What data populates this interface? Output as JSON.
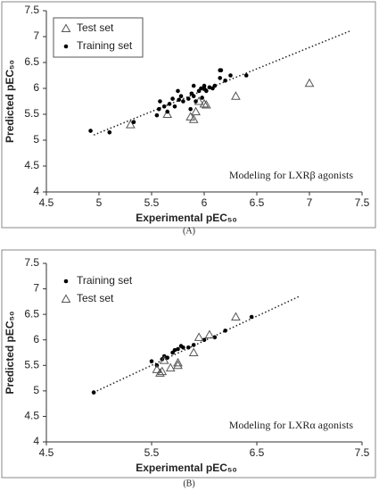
{
  "chart_data": [
    {
      "type": "scatter",
      "caption": "(A)",
      "xlabel": "Experimental pEC₅₀",
      "ylabel": "Predicted pEC₅₀",
      "annotation": "Modeling  for LXRβ agonists",
      "xlim": [
        4.5,
        7.5
      ],
      "xticks": [
        4.5,
        5,
        5.5,
        6,
        6.5,
        7,
        7.5
      ],
      "ylim": [
        4,
        7.5
      ],
      "yticks": [
        4,
        4.5,
        5,
        5.5,
        6,
        6.5,
        7,
        7.5
      ],
      "legend": "top-left",
      "legend_box": true,
      "series": [
        {
          "name": "Test set",
          "marker": "triangle",
          "color": "#555555",
          "x": [
            5.3,
            5.65,
            5.87,
            5.9,
            5.92,
            5.95,
            6.0,
            6.02,
            6.3,
            7.0
          ],
          "y": [
            5.3,
            5.5,
            5.45,
            5.4,
            5.55,
            5.75,
            5.7,
            5.68,
            5.85,
            6.1
          ]
        },
        {
          "name": "Training set",
          "marker": "dot",
          "color": "#000000",
          "x": [
            4.92,
            5.1,
            5.33,
            5.55,
            5.57,
            5.58,
            5.62,
            5.65,
            5.67,
            5.7,
            5.72,
            5.75,
            5.76,
            5.78,
            5.8,
            5.85,
            5.87,
            5.88,
            5.9,
            5.9,
            5.92,
            5.95,
            5.97,
            5.98,
            6.0,
            6.0,
            6.02,
            6.05,
            6.08,
            6.1,
            6.15,
            6.16,
            6.15,
            6.2,
            6.25,
            6.4
          ],
          "y": [
            5.18,
            5.15,
            5.35,
            5.48,
            5.6,
            5.75,
            5.65,
            5.55,
            5.7,
            5.8,
            5.65,
            5.95,
            5.78,
            5.85,
            5.75,
            5.8,
            5.6,
            5.9,
            6.05,
            5.85,
            5.75,
            5.95,
            6.0,
            5.82,
            6.0,
            6.05,
            5.95,
            6.02,
            6.0,
            6.05,
            6.35,
            6.35,
            6.2,
            6.15,
            6.25,
            6.25
          ]
        }
      ],
      "trendline": {
        "x": [
          4.95,
          7.4
        ],
        "y": [
          5.1,
          7.12
        ]
      }
    },
    {
      "type": "scatter",
      "caption": "(B)",
      "xlabel": "Experimental pEC₅₀",
      "ylabel": "Predicted pEC₅₀",
      "annotation": "Modeling for LXRα  agonists",
      "xlim": [
        4.5,
        7.5
      ],
      "xticks": [
        4.5,
        5.5,
        6.5,
        7.5
      ],
      "ylim": [
        4,
        7.5
      ],
      "yticks": [
        4,
        4.5,
        5,
        5.5,
        6,
        6.5,
        7,
        7.5
      ],
      "legend": "top-left",
      "legend_box": false,
      "series": [
        {
          "name": "Training set",
          "marker": "dot",
          "color": "#000000",
          "x": [
            4.95,
            5.5,
            5.55,
            5.6,
            5.62,
            5.65,
            5.7,
            5.72,
            5.75,
            5.78,
            5.8,
            5.85,
            5.9,
            6.0,
            6.1,
            6.2,
            6.45
          ],
          "y": [
            4.97,
            5.58,
            5.5,
            5.62,
            5.68,
            5.65,
            5.75,
            5.8,
            5.82,
            5.88,
            5.85,
            5.85,
            5.9,
            6.0,
            6.05,
            6.18,
            6.45
          ]
        },
        {
          "name": "Test set",
          "marker": "triangle",
          "color": "#555555",
          "x": [
            5.55,
            5.58,
            5.6,
            5.62,
            5.68,
            5.75,
            5.75,
            5.9,
            5.95,
            6.05,
            6.3
          ],
          "y": [
            5.42,
            5.35,
            5.38,
            5.6,
            5.45,
            5.5,
            5.55,
            5.75,
            6.05,
            6.1,
            6.45
          ]
        }
      ],
      "trendline": {
        "x": [
          4.95,
          6.9
        ],
        "y": [
          4.97,
          6.85
        ]
      }
    }
  ]
}
